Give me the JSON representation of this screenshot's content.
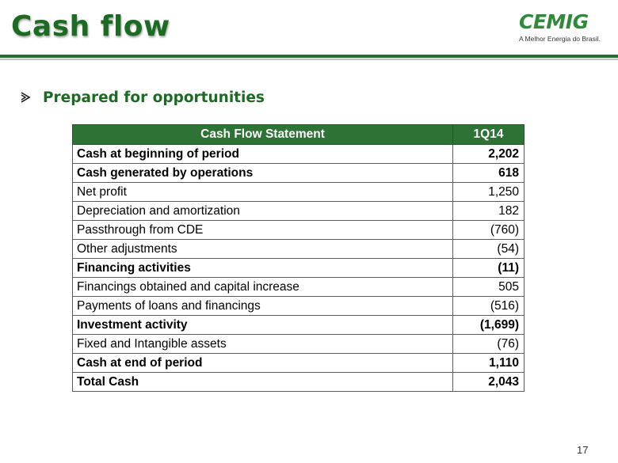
{
  "slide": {
    "title": "Cash flow",
    "page_number": "17"
  },
  "logo": {
    "brand": "CEMIG",
    "tagline": "A Melhor Energia do Brasil."
  },
  "bullet": {
    "icon": "arrow-bullet-icon",
    "text": "Prepared for opportunities"
  },
  "colors": {
    "title_green": "#1c6b22",
    "header_green": "#2e7236",
    "rule_green": "#2e6b31"
  },
  "table": {
    "headers": [
      "Cash Flow Statement",
      "1Q14"
    ],
    "rows": [
      {
        "label": "Cash at beginning of period",
        "value": "2,202",
        "bold": true
      },
      {
        "label": "Cash generated by operations",
        "value": "618",
        "bold": true
      },
      {
        "label": "Net profit",
        "value": "1,250",
        "bold": false
      },
      {
        "label": "Depreciation and amortization",
        "value": "182",
        "bold": false
      },
      {
        "label": "Passthrough from CDE",
        "value": "(760)",
        "bold": false
      },
      {
        "label": "Other adjustments",
        "value": "(54)",
        "bold": false
      },
      {
        "label": "Financing activities",
        "value": "(11)",
        "bold": true
      },
      {
        "label": "Financings obtained and capital increase",
        "value": "505",
        "bold": false
      },
      {
        "label": "Payments of loans and financings",
        "value": "(516)",
        "bold": false
      },
      {
        "label": "Investment activity",
        "value": "(1,699)",
        "bold": true
      },
      {
        "label": "Fixed and Intangible assets",
        "value": "(76)",
        "bold": false
      },
      {
        "label": "Cash at end of period",
        "value": "1,110",
        "bold": true
      },
      {
        "label": "Total Cash",
        "value": "2,043",
        "bold": true
      }
    ]
  }
}
